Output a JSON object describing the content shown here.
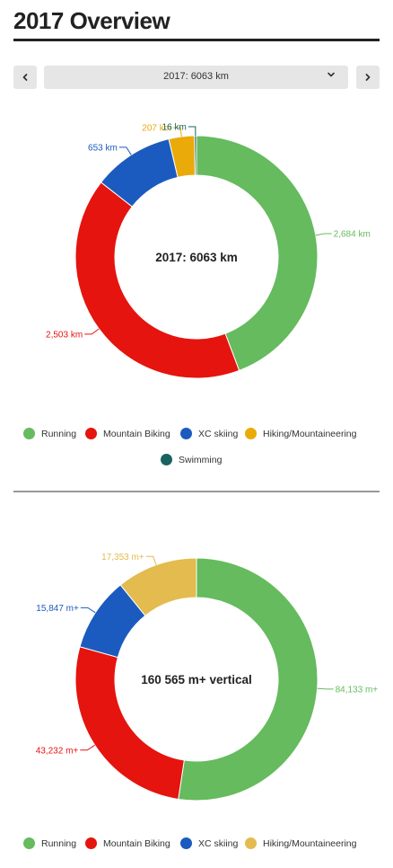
{
  "page": {
    "title": "2017 Overview"
  },
  "nav": {
    "prev_icon": "chevron-left-icon",
    "next_icon": "chevron-right-icon",
    "selected_year": "2017: 6063 km",
    "dropdown_icon": "chevron-down-icon"
  },
  "chart_data": [
    {
      "type": "pie",
      "variant": "donut",
      "center_label": "2017: 6063 km",
      "categories": [
        "Running",
        "Mountain Biking",
        "XC skiing",
        "Hiking/Mountaineering",
        "Swimming"
      ],
      "values": [
        2684,
        2503,
        653,
        207,
        16
      ],
      "data_labels": [
        "2,684 km",
        "2,503 km",
        "653 km",
        "207 km",
        "16 km"
      ],
      "colors": [
        "#65bb5e",
        "#e5140e",
        "#1b5bbf",
        "#eaaa0a",
        "#1a6260"
      ],
      "legend": [
        "Running",
        "Mountain Biking",
        "XC skiing",
        "Hiking/Mountaineering",
        "Swimming"
      ],
      "legend_position": "bottom"
    },
    {
      "type": "pie",
      "variant": "donut",
      "center_label": "160 565 m+ vertical",
      "categories": [
        "Running",
        "Mountain Biking",
        "XC skiing",
        "Hiking/Mountaineering"
      ],
      "values": [
        84133,
        43232,
        15847,
        17353
      ],
      "data_labels": [
        "84,133 m+",
        "43,232 m+",
        "15,847 m+",
        "17,353 m+"
      ],
      "colors": [
        "#65bb5e",
        "#e5140e",
        "#1b5bbf",
        "#e3bb4f"
      ],
      "legend": [
        "Running",
        "Mountain Biking",
        "XC skiing",
        "Hiking/Mountaineering"
      ],
      "legend_position": "bottom"
    }
  ]
}
